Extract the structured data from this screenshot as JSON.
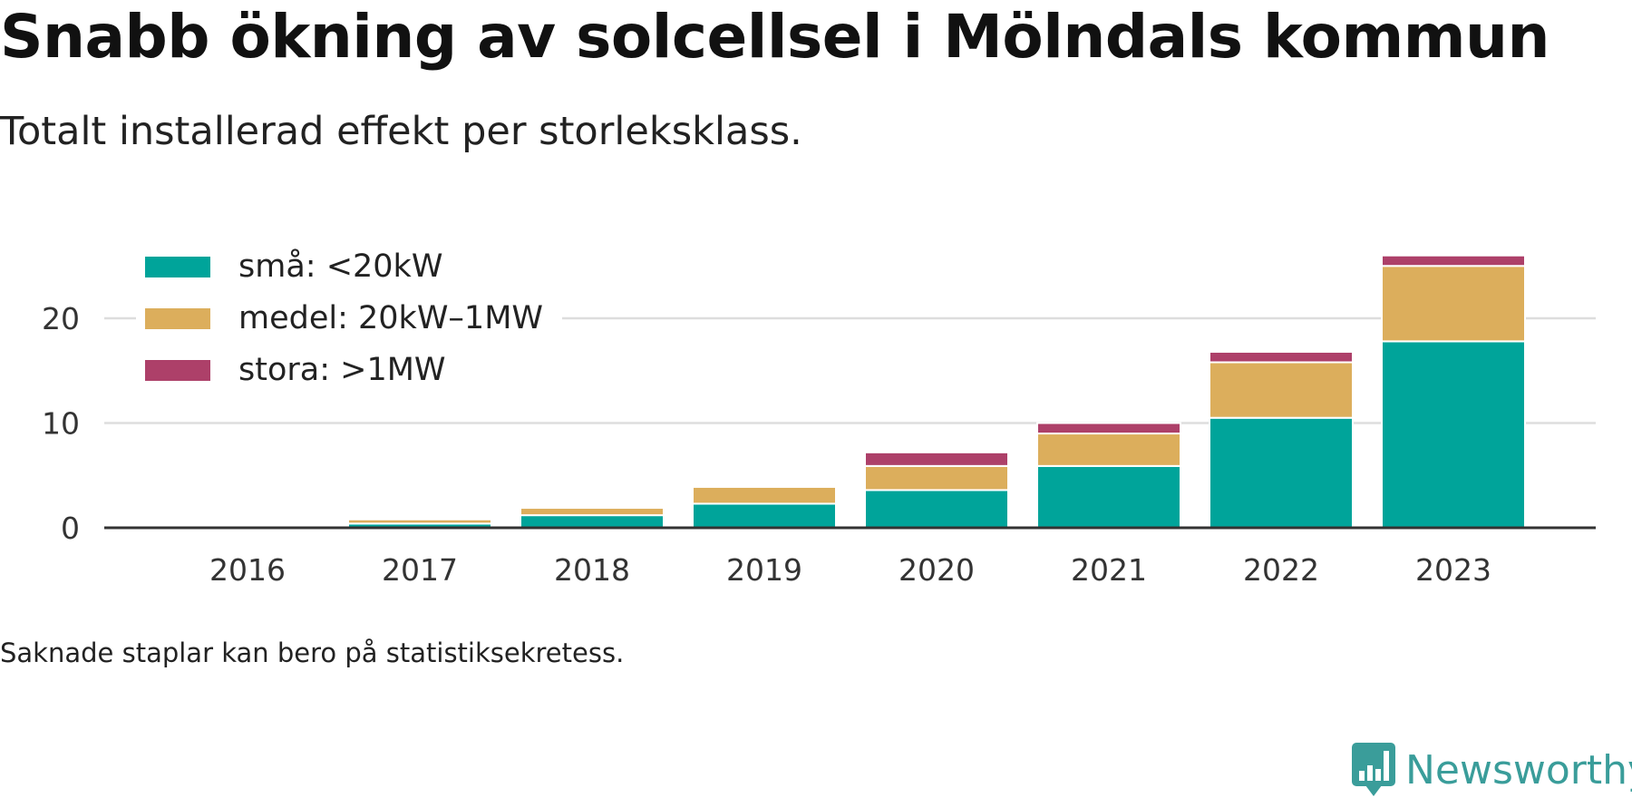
{
  "title": "Snabb ökning av solcellsel i Mölndals kommun",
  "subtitle": "Totalt installerad effekt per storleksklass.",
  "footnote": "Saknade staplar kan bero på statistiksekretess.",
  "logo": {
    "name": "Newsworthy",
    "icon": "newsworthy-logo-icon",
    "color": "#3a9d9a"
  },
  "chart_data": {
    "type": "bar",
    "stacked": true,
    "categories": [
      "2016",
      "2017",
      "2018",
      "2019",
      "2020",
      "2021",
      "2022",
      "2023"
    ],
    "series": [
      {
        "name": "små: <20kW",
        "color": "#00a49a",
        "values": [
          0.05,
          0.4,
          1.2,
          2.3,
          3.6,
          5.9,
          10.5,
          17.8
        ]
      },
      {
        "name": "medel: 20kW–1MW",
        "color": "#dcae5c",
        "values": [
          0.05,
          0.4,
          0.7,
          1.6,
          2.3,
          3.1,
          5.3,
          7.2
        ]
      },
      {
        "name": "stora: >1MW",
        "color": "#ad4069",
        "values": [
          0,
          0,
          0,
          0,
          1.3,
          1.0,
          1.0,
          1.0
        ]
      }
    ],
    "ylim": [
      0,
      26
    ],
    "yticks": [
      0,
      10,
      20
    ],
    "grid": true,
    "legend_position": "top-left",
    "xlabel": "",
    "ylabel": ""
  }
}
